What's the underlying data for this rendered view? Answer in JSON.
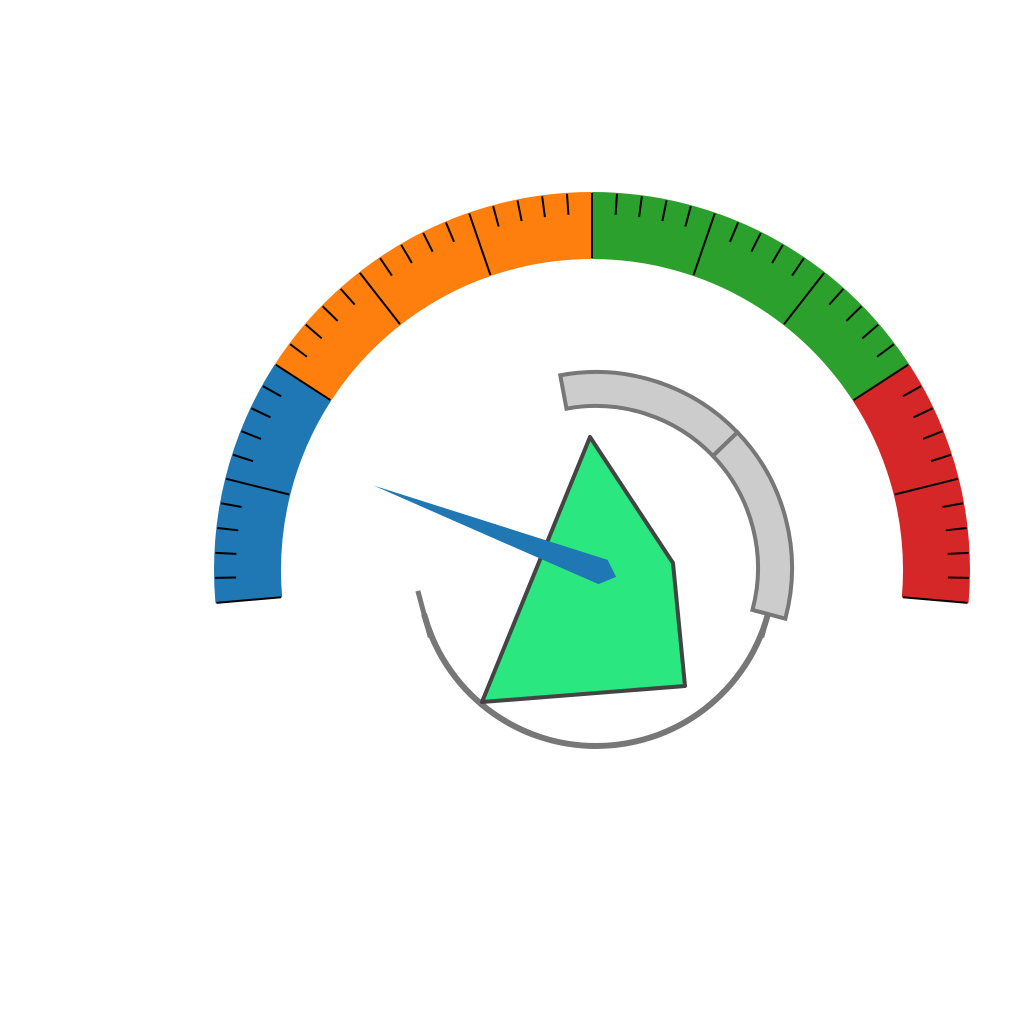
{
  "chart_data": {
    "type": "gauge",
    "title": "",
    "range": [
      0,
      100
    ],
    "value": 13.5,
    "bands": [
      {
        "from": 0,
        "to": 20,
        "color": "#1f77b4"
      },
      {
        "from": 20,
        "to": 50,
        "color": "#ff7f0e"
      },
      {
        "from": 50,
        "to": 80,
        "color": "#2ca02c"
      },
      {
        "from": 80,
        "to": 100,
        "color": "#d62728"
      }
    ],
    "major_ticks": [
      0,
      10,
      20,
      30,
      40,
      50,
      60,
      70,
      80,
      90,
      100
    ],
    "minor_ticks_per_major": 5,
    "needle_color": "#1f77b4",
    "inner_polygon": {
      "fill": "#2ae77f",
      "stroke": "#444444"
    },
    "inner_scale": {
      "color": "#777777",
      "segment_fill": "#cccccc",
      "segments": [
        [
          0.45,
          0.72
        ],
        [
          0.72,
          1.0
        ]
      ]
    }
  }
}
